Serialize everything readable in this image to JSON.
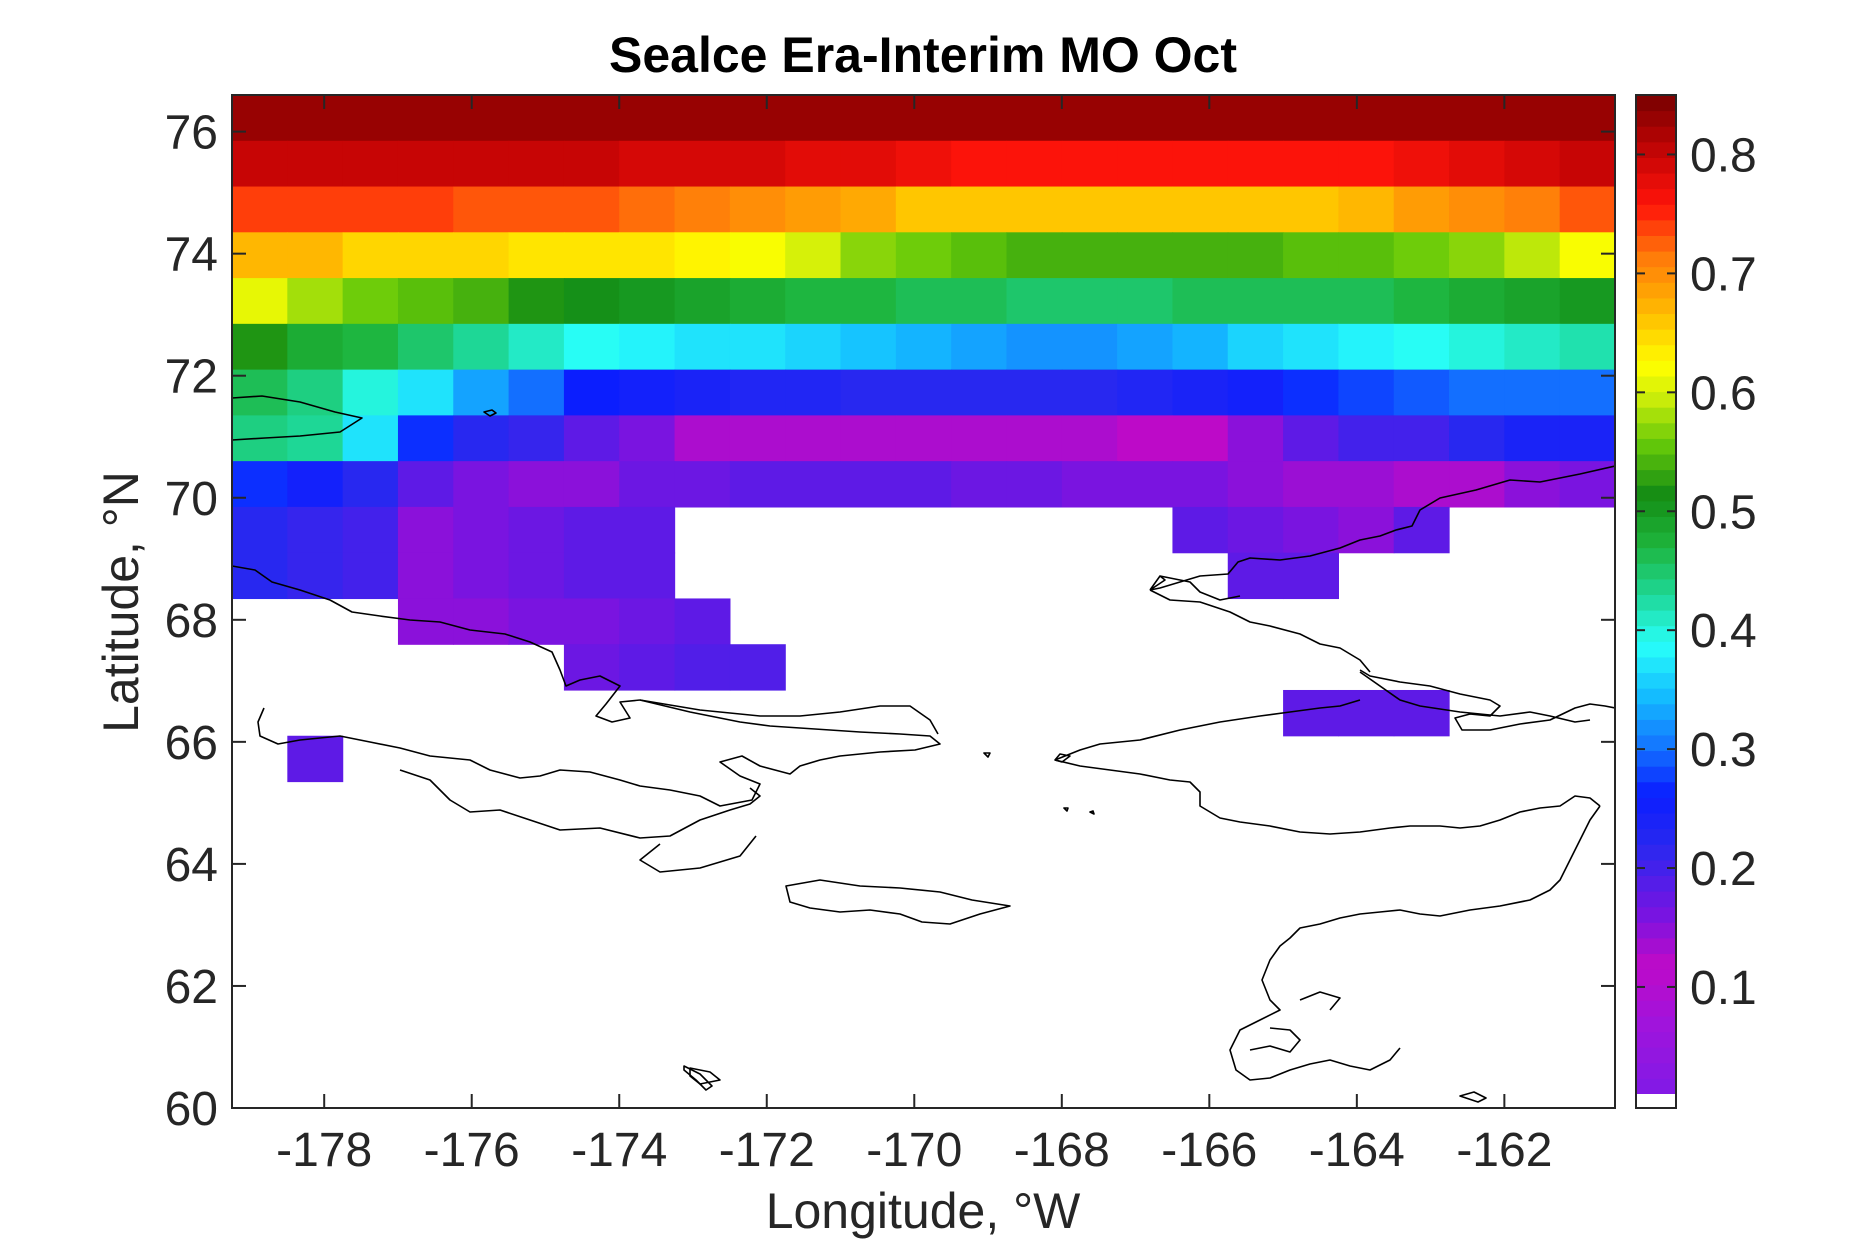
{
  "chart_data": {
    "type": "heatmap",
    "title": "Sealce Era-Interim MO Oct",
    "xlabel": "Longitude, °W",
    "ylabel": "Latitude, °N",
    "xlim": [
      -179.25,
      -160.5
    ],
    "ylim": [
      60,
      76.6
    ],
    "xticks": [
      -178,
      -176,
      -174,
      -172,
      -170,
      -168,
      -166,
      -164,
      -162
    ],
    "yticks": [
      60,
      62,
      64,
      66,
      68,
      70,
      72,
      74,
      76
    ],
    "grid": false,
    "colorbar": {
      "range": [
        0.01,
        0.85
      ],
      "ticks": [
        0.1,
        0.2,
        0.3,
        0.4,
        0.5,
        0.6,
        0.7,
        0.8
      ],
      "colormap": "spectral-rainbow-purple-to-darkred",
      "zero_color": "#ffffff"
    },
    "grid_cells": {
      "x0": -179.25,
      "dx": 0.75,
      "dy": 0.75,
      "rows": [
        {
          "y0": 75.85,
          "y1": 76.6,
          "values": [
            0.83,
            0.83,
            0.83,
            0.83,
            0.83,
            0.83,
            0.83,
            0.83,
            0.83,
            0.83,
            0.83,
            0.83,
            0.83,
            0.83,
            0.83,
            0.83,
            0.83,
            0.83,
            0.83,
            0.83,
            0.83,
            0.83,
            0.83,
            0.83,
            0.83
          ]
        },
        {
          "y0": 75.1,
          "y1": 75.85,
          "values": [
            0.8,
            0.8,
            0.8,
            0.8,
            0.8,
            0.8,
            0.8,
            0.79,
            0.79,
            0.79,
            0.78,
            0.78,
            0.77,
            0.76,
            0.76,
            0.76,
            0.76,
            0.76,
            0.76,
            0.76,
            0.76,
            0.77,
            0.78,
            0.79,
            0.8
          ]
        },
        {
          "y0": 74.35,
          "y1": 75.1,
          "values": [
            0.74,
            0.74,
            0.74,
            0.74,
            0.73,
            0.73,
            0.73,
            0.72,
            0.71,
            0.7,
            0.69,
            0.68,
            0.66,
            0.66,
            0.66,
            0.66,
            0.66,
            0.66,
            0.66,
            0.66,
            0.67,
            0.69,
            0.7,
            0.71,
            0.73
          ]
        },
        {
          "y0": 73.6,
          "y1": 74.35,
          "values": [
            0.67,
            0.67,
            0.65,
            0.65,
            0.65,
            0.64,
            0.64,
            0.64,
            0.63,
            0.62,
            0.6,
            0.57,
            0.56,
            0.55,
            0.54,
            0.54,
            0.54,
            0.54,
            0.54,
            0.55,
            0.55,
            0.56,
            0.57,
            0.59,
            0.62
          ]
        },
        {
          "y0": 72.85,
          "y1": 73.6,
          "values": [
            0.61,
            0.58,
            0.56,
            0.55,
            0.54,
            0.52,
            0.51,
            0.5,
            0.49,
            0.48,
            0.47,
            0.47,
            0.46,
            0.46,
            0.45,
            0.45,
            0.45,
            0.46,
            0.46,
            0.46,
            0.46,
            0.47,
            0.48,
            0.49,
            0.5
          ]
        },
        {
          "y0": 72.1,
          "y1": 72.85,
          "values": [
            0.52,
            0.48,
            0.47,
            0.45,
            0.43,
            0.41,
            0.39,
            0.38,
            0.37,
            0.37,
            0.36,
            0.35,
            0.34,
            0.33,
            0.32,
            0.32,
            0.33,
            0.34,
            0.36,
            0.37,
            0.38,
            0.39,
            0.4,
            0.41,
            0.42
          ]
        },
        {
          "y0": 71.35,
          "y1": 72.1,
          "values": [
            0.46,
            0.44,
            0.4,
            0.37,
            0.33,
            0.3,
            0.26,
            0.25,
            0.24,
            0.23,
            0.23,
            0.22,
            0.22,
            0.22,
            0.22,
            0.22,
            0.23,
            0.24,
            0.25,
            0.27,
            0.28,
            0.29,
            0.3,
            0.3,
            0.3
          ]
        },
        {
          "y0": 70.6,
          "y1": 71.35,
          "values": [
            0.44,
            0.43,
            0.37,
            0.27,
            0.22,
            0.21,
            0.18,
            0.16,
            0.13,
            0.13,
            0.13,
            0.13,
            0.13,
            0.13,
            0.13,
            0.13,
            0.12,
            0.12,
            0.15,
            0.18,
            0.2,
            0.2,
            0.22,
            0.24,
            0.24
          ]
        },
        {
          "y0": 69.85,
          "y1": 70.6,
          "values": [
            0.27,
            0.25,
            0.22,
            0.18,
            0.16,
            0.15,
            0.15,
            0.17,
            0.17,
            0.18,
            0.18,
            0.18,
            0.18,
            0.17,
            0.17,
            0.16,
            0.16,
            0.16,
            0.15,
            0.14,
            0.14,
            0.13,
            0.13,
            0.15,
            0.16
          ]
        },
        {
          "y0": 69.1,
          "y1": 69.85,
          "values": [
            0.22,
            0.21,
            0.2,
            0.15,
            0.16,
            0.17,
            0.18,
            0.18,
            null,
            null,
            null,
            null,
            null,
            null,
            null,
            null,
            null,
            0.18,
            0.17,
            0.16,
            0.15,
            0.18,
            null,
            null,
            null
          ]
        },
        {
          "y0": 68.35,
          "y1": 69.1,
          "values": [
            0.22,
            0.21,
            0.2,
            0.15,
            0.16,
            0.17,
            0.18,
            0.18,
            null,
            null,
            null,
            null,
            null,
            null,
            null,
            null,
            null,
            null,
            0.18,
            0.18,
            null,
            null,
            null,
            null,
            null
          ]
        },
        {
          "y0": 67.6,
          "y1": 68.35,
          "values": [
            null,
            null,
            null,
            0.15,
            0.15,
            0.16,
            0.16,
            0.17,
            0.18,
            null,
            null,
            null,
            null,
            null,
            null,
            null,
            null,
            null,
            null,
            null,
            null,
            null,
            null,
            null,
            null
          ]
        },
        {
          "y0": 66.85,
          "y1": 67.6,
          "values": [
            null,
            null,
            null,
            null,
            null,
            null,
            0.17,
            0.18,
            0.19,
            0.19,
            null,
            null,
            null,
            null,
            null,
            null,
            null,
            null,
            null,
            null,
            null,
            null,
            null,
            null,
            null
          ]
        },
        {
          "y0": 66.1,
          "y1": 66.85,
          "values": [
            null,
            null,
            null,
            null,
            null,
            null,
            null,
            null,
            null,
            null,
            null,
            null,
            null,
            null,
            null,
            null,
            null,
            null,
            null,
            0.18,
            0.18,
            0.18,
            null,
            null,
            null
          ]
        },
        {
          "y0": 65.35,
          "y1": 66.1,
          "values": [
            null,
            0.18,
            null,
            null,
            null,
            null,
            null,
            null,
            null,
            null,
            null,
            null,
            null,
            null,
            null,
            null,
            null,
            null,
            null,
            null,
            null,
            null,
            null,
            null,
            null
          ]
        }
      ]
    }
  },
  "colors": {
    "axis": "#262626",
    "coastline": "#000000",
    "background": "#ffffff"
  }
}
